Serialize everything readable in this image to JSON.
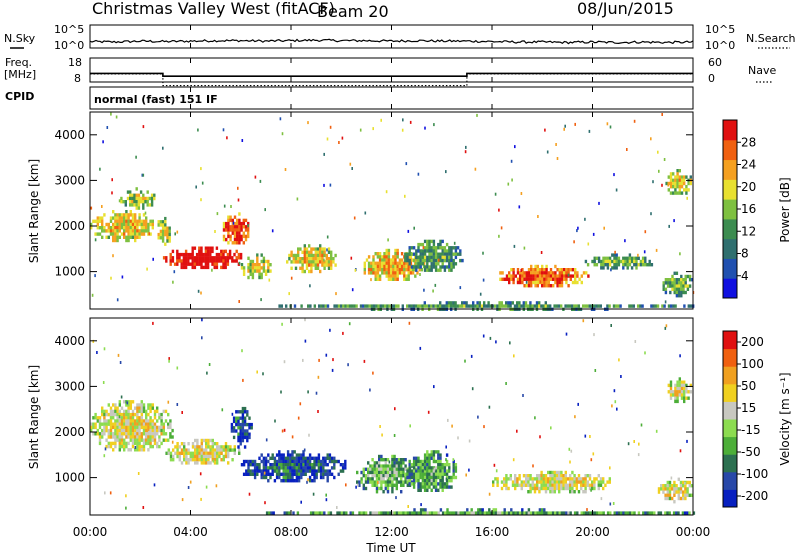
{
  "header": {
    "title": "Christmas Valley West (fitACF)",
    "beam": "Beam 20",
    "date": "08/Jun/2015"
  },
  "panels": {
    "nsky": {
      "label": "N.Sky",
      "right_label": "N.Search",
      "ticks_left": [
        "10^5",
        "10^0"
      ],
      "ticks_right": [
        "10^5",
        "10^0"
      ]
    },
    "freq": {
      "label_line1": "Freq.",
      "label_line2": "[MHz]",
      "right_label": "Nave",
      "ticks_left": [
        "18",
        "8"
      ],
      "ticks_right": [
        "60",
        "0"
      ]
    },
    "cpid": {
      "label": "CPID",
      "text": "normal (fast) 151 IF"
    }
  },
  "axes": {
    "ylabel": "Slant Range [km]",
    "xlabel": "Time UT",
    "xticks": [
      "00:00",
      "04:00",
      "08:00",
      "12:00",
      "16:00",
      "20:00",
      "00:00"
    ],
    "yticks": [
      "1000",
      "2000",
      "3000",
      "4000"
    ]
  },
  "chart_data": [
    {
      "type": "heatmap",
      "panel": "power",
      "x_range_hours": [
        0,
        24
      ],
      "y_range_km": [
        180,
        4500
      ],
      "colorbar": {
        "label": "Power [dB]",
        "ticks": [
          "4",
          "8",
          "12",
          "16",
          "20",
          "24",
          "28"
        ],
        "colors": [
          "#1010e0",
          "#2050b0",
          "#2f6f6f",
          "#3c8c50",
          "#7ec040",
          "#e8e030",
          "#f5a020",
          "#f06010",
          "#e01010"
        ]
      },
      "regions": [
        {
          "t0": 0.0,
          "t1": 2.5,
          "r0": 1700,
          "r1": 2350,
          "level": 0.55
        },
        {
          "t0": 1.2,
          "t1": 2.6,
          "r0": 2400,
          "r1": 2850,
          "level": 0.45
        },
        {
          "t0": 2.6,
          "t1": 3.2,
          "r0": 1600,
          "r1": 2200,
          "level": 0.5
        },
        {
          "t0": 2.9,
          "t1": 6.2,
          "r0": 1100,
          "r1": 1550,
          "level": 0.95
        },
        {
          "t0": 5.2,
          "t1": 6.3,
          "r0": 1600,
          "r1": 2300,
          "level": 0.75
        },
        {
          "t0": 6.0,
          "t1": 7.2,
          "r0": 850,
          "r1": 1400,
          "level": 0.5
        },
        {
          "t0": 7.8,
          "t1": 9.8,
          "r0": 1000,
          "r1": 1600,
          "level": 0.55
        },
        {
          "t0": 10.8,
          "t1": 13.3,
          "r0": 800,
          "r1": 1500,
          "level": 0.6
        },
        {
          "t0": 12.5,
          "t1": 14.8,
          "r0": 1000,
          "r1": 1700,
          "level": 0.3
        },
        {
          "t0": 16.2,
          "t1": 19.8,
          "r0": 700,
          "r1": 1150,
          "level": 0.75
        },
        {
          "t0": 19.6,
          "t1": 22.5,
          "r0": 1100,
          "r1": 1400,
          "level": 0.35
        },
        {
          "t0": 22.7,
          "t1": 24.0,
          "r0": 500,
          "r1": 1000,
          "level": 0.35
        },
        {
          "t0": 22.9,
          "t1": 23.9,
          "r0": 2700,
          "r1": 3250,
          "level": 0.5
        },
        {
          "t0": 7.5,
          "t1": 24.0,
          "r0": 200,
          "r1": 350,
          "level": 0.3
        }
      ]
    },
    {
      "type": "heatmap",
      "panel": "velocity",
      "x_range_hours": [
        0,
        24
      ],
      "y_range_km": [
        180,
        4500
      ],
      "colorbar": {
        "label": "Velocity [m s⁻¹]",
        "ticks": [
          "200",
          "100",
          "50",
          "15",
          "-15",
          "-50",
          "-100",
          "-200"
        ],
        "colors": [
          "#0820c0",
          "#2848a8",
          "#2c7050",
          "#4cae38",
          "#8cdc50",
          "#c8c8c0",
          "#f0d020",
          "#f0a020",
          "#f06010",
          "#e01010"
        ]
      },
      "regions": [
        {
          "t0": 0.0,
          "t1": 3.3,
          "r0": 1600,
          "r1": 2700,
          "level": 0.5
        },
        {
          "t0": 3.0,
          "t1": 5.9,
          "r0": 1300,
          "r1": 1850,
          "level": 0.5
        },
        {
          "t0": 5.6,
          "t1": 6.4,
          "r0": 1700,
          "r1": 2550,
          "level": 0.1
        },
        {
          "t0": 6.0,
          "t1": 10.2,
          "r0": 900,
          "r1": 1600,
          "level": 0.08
        },
        {
          "t0": 10.5,
          "t1": 13.0,
          "r0": 700,
          "r1": 1500,
          "level": 0.3
        },
        {
          "t0": 12.5,
          "t1": 14.6,
          "r0": 700,
          "r1": 1600,
          "level": 0.25
        },
        {
          "t0": 16.0,
          "t1": 20.8,
          "r0": 700,
          "r1": 1150,
          "level": 0.5
        },
        {
          "t0": 22.6,
          "t1": 24.0,
          "r0": 500,
          "r1": 1000,
          "level": 0.5
        },
        {
          "t0": 22.9,
          "t1": 23.9,
          "r0": 2700,
          "r1": 3200,
          "level": 0.5
        },
        {
          "t0": 7.0,
          "t1": 24.0,
          "r0": 200,
          "r1": 330,
          "level": 0.25
        }
      ]
    }
  ],
  "nsky_series": {
    "type": "line",
    "x_hours": [
      0,
      1,
      2,
      3,
      4,
      5,
      6,
      7,
      8,
      9,
      10,
      11,
      12,
      13,
      14,
      15,
      16,
      17,
      18,
      19,
      20,
      21,
      22,
      23,
      24
    ],
    "y_log": [
      1.4,
      1.3,
      1.5,
      1.4,
      1.5,
      1.6,
      1.6,
      1.5,
      1.6,
      1.7,
      1.6,
      1.6,
      1.5,
      1.6,
      1.5,
      1.5,
      1.4,
      1.3,
      1.3,
      1.2,
      1.3,
      1.2,
      1.3,
      1.2,
      1.3
    ]
  },
  "freq_series": {
    "type": "line",
    "x_hours": [
      0,
      2.9,
      2.9,
      15.0,
      15.0,
      24.0
    ],
    "y_mhz": [
      11.6,
      11.6,
      10.4,
      10.4,
      11.6,
      11.6
    ]
  },
  "nave_series": {
    "type": "line",
    "x_hours": [
      0,
      2.9,
      2.9,
      15.0,
      15.0,
      24.0
    ],
    "y_count": [
      34,
      34,
      5,
      5,
      34,
      34
    ]
  }
}
